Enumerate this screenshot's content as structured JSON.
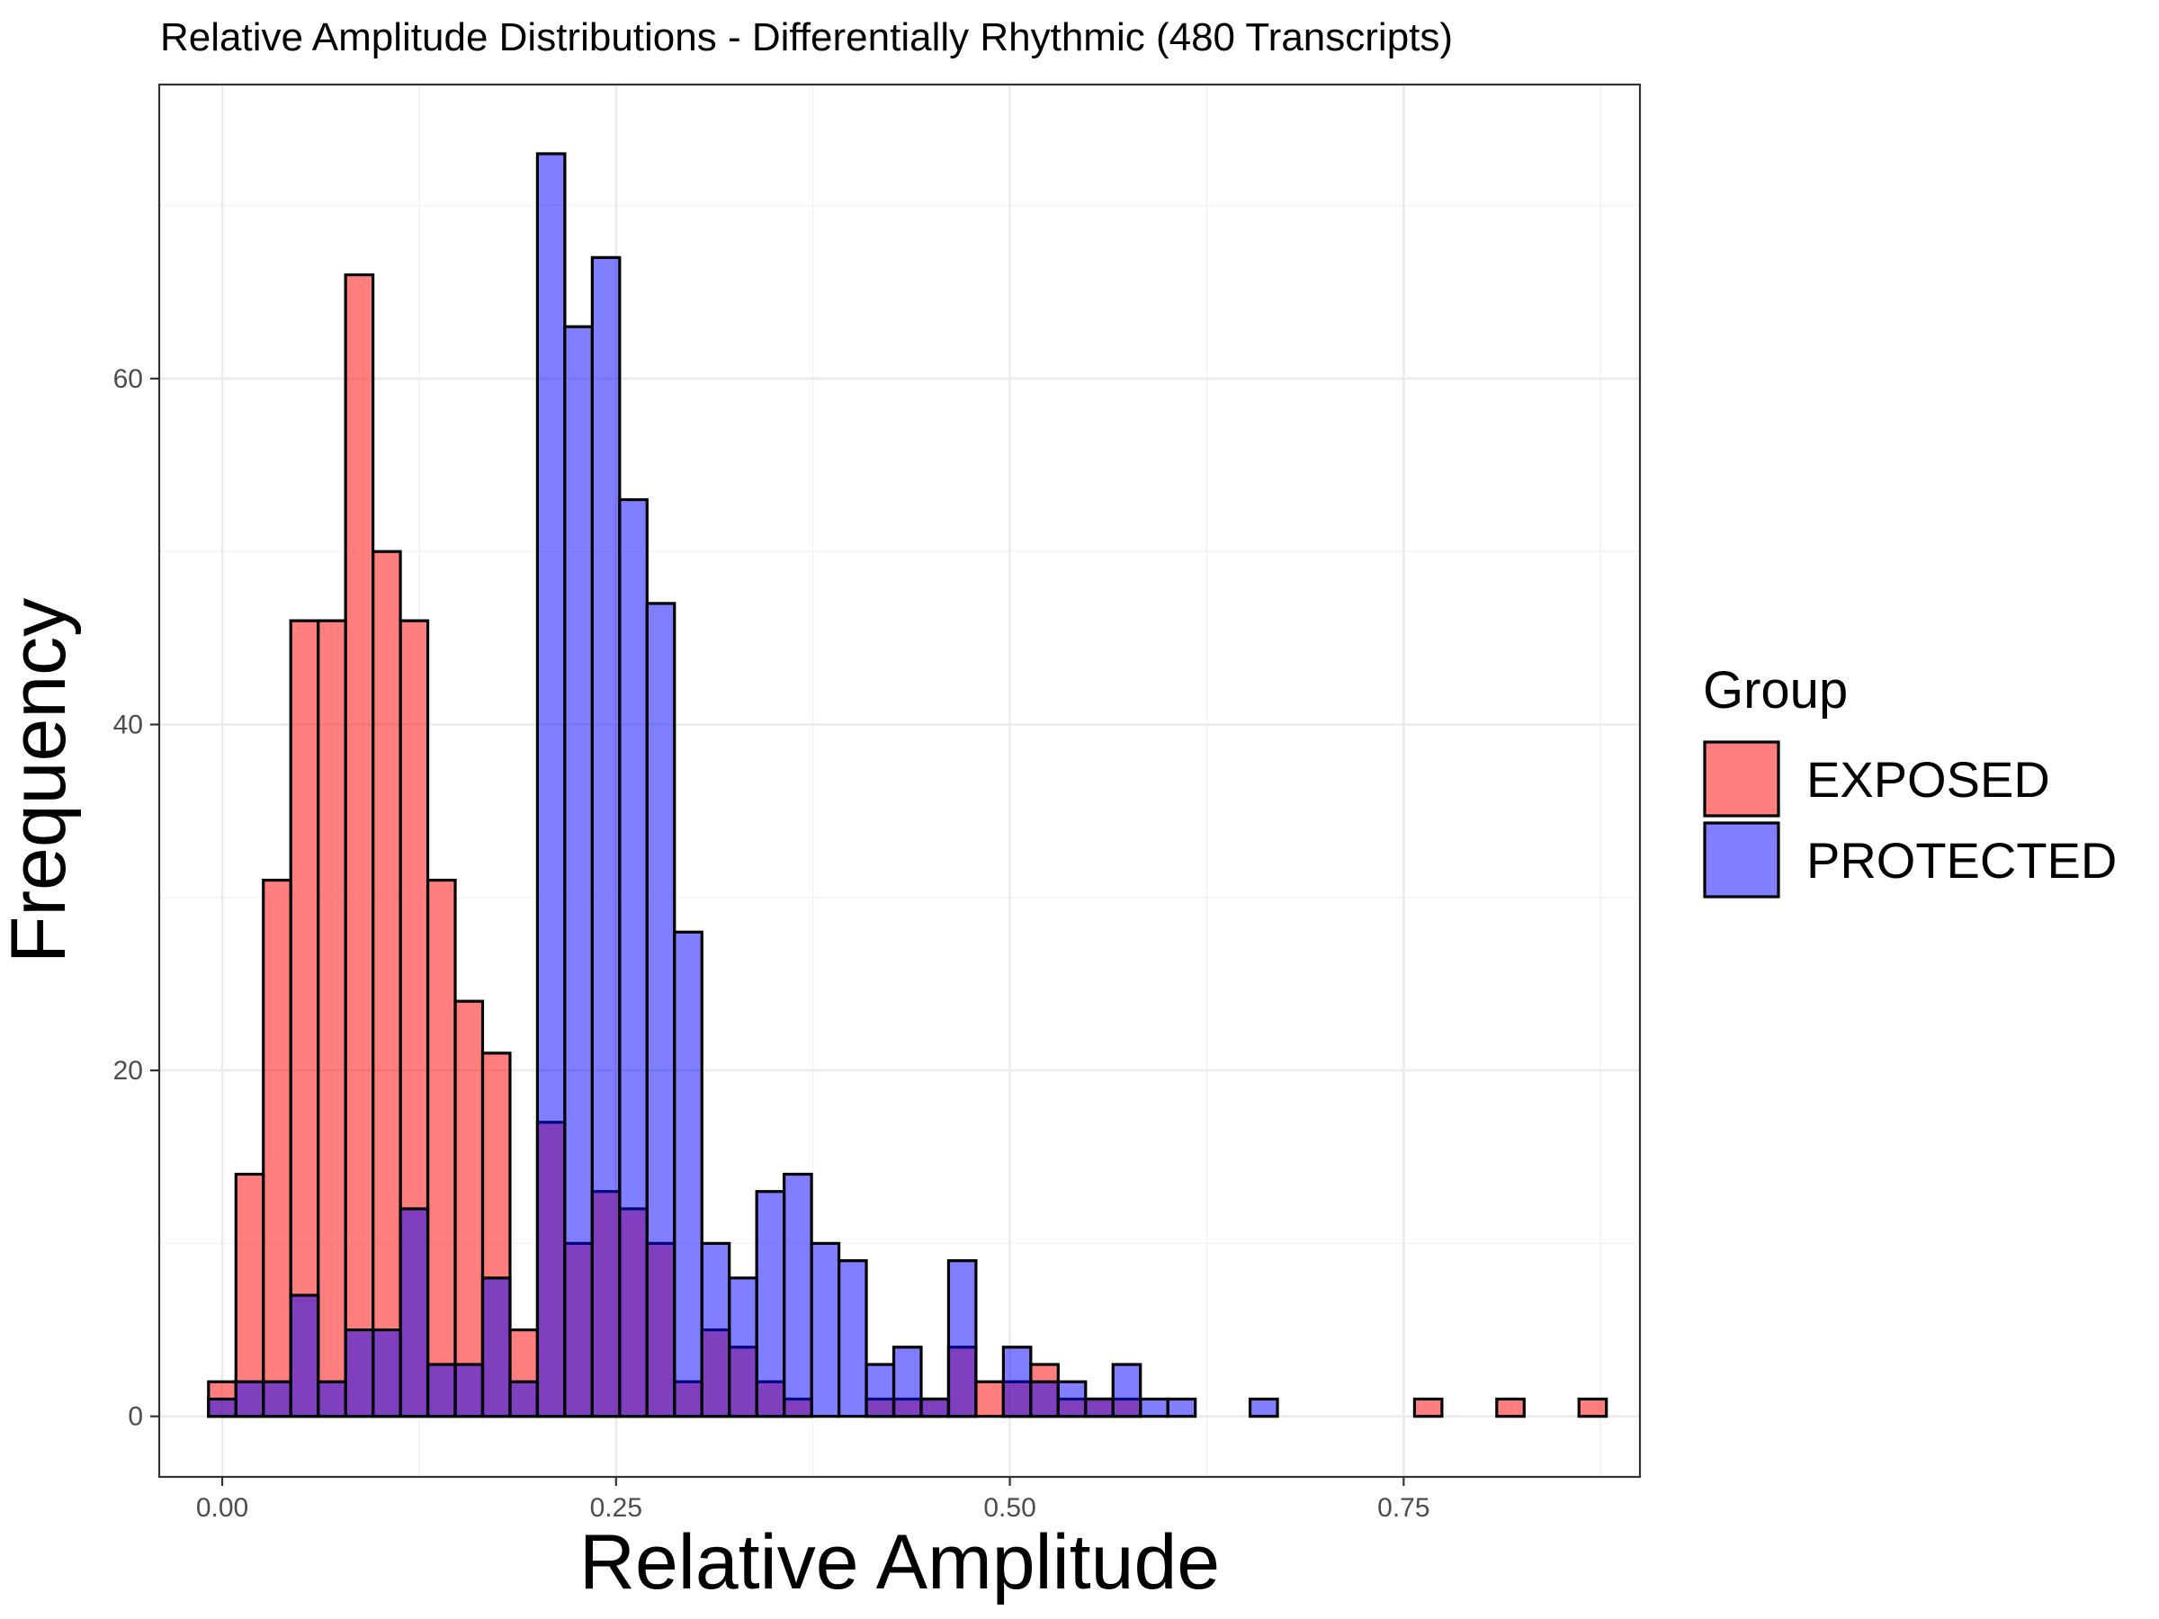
{
  "chart_data": {
    "type": "bar",
    "title": "Relative Amplitude Distributions - Differentially Rhythmic (480 Transcripts)",
    "xlabel": "Relative Amplitude",
    "ylabel": "Frequency",
    "xlim": [
      -0.04,
      0.9
    ],
    "ylim": [
      -3.5,
      77
    ],
    "x_ticks": [
      0.0,
      0.25,
      0.5,
      0.75
    ],
    "x_tick_labels": [
      "0.00",
      "0.25",
      "0.50",
      "0.75"
    ],
    "y_ticks": [
      0,
      20,
      40,
      60
    ],
    "y_tick_labels": [
      "0",
      "20",
      "40",
      "60"
    ],
    "grid": true,
    "legend": {
      "title": "Group",
      "position": "right"
    },
    "bin_width": 0.0174,
    "bin_start": 0.0,
    "series": [
      {
        "name": "EXPOSED",
        "color": "#ff0000",
        "opacity": 0.5,
        "values": [
          2,
          14,
          31,
          46,
          46,
          66,
          50,
          46,
          31,
          24,
          21,
          5,
          17,
          10,
          13,
          12,
          10,
          2,
          5,
          4,
          2,
          1,
          0,
          0,
          1,
          1,
          1,
          4,
          2,
          2,
          3,
          1,
          1,
          1,
          0,
          0,
          0,
          0,
          0,
          0,
          0,
          0,
          0,
          0,
          1,
          0,
          0,
          1,
          0,
          0,
          1
        ]
      },
      {
        "name": "PROTECTED",
        "color": "#0000ff",
        "opacity": 0.5,
        "values": [
          1,
          2,
          2,
          7,
          2,
          5,
          5,
          12,
          3,
          3,
          8,
          2,
          73,
          63,
          67,
          53,
          47,
          28,
          10,
          8,
          13,
          14,
          10,
          9,
          3,
          4,
          1,
          9,
          0,
          4,
          2,
          2,
          1,
          3,
          1,
          1,
          0,
          0,
          1,
          0,
          0,
          0,
          0,
          0,
          0,
          0,
          0,
          0,
          0,
          0,
          0
        ]
      }
    ]
  }
}
